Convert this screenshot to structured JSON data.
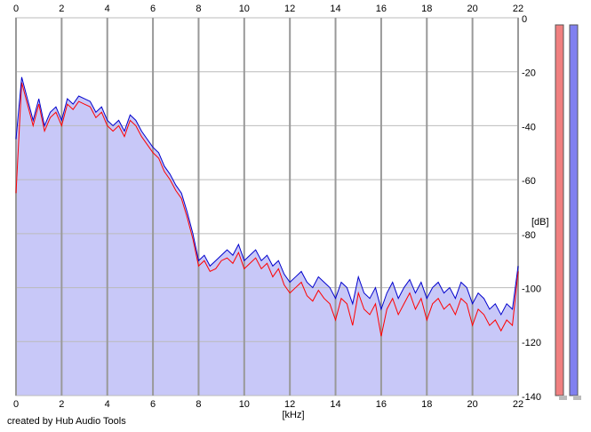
{
  "chart_data": {
    "type": "line",
    "x_label": "[kHz]",
    "y_label": "[dB]",
    "credit": "created by Hub Audio Tools",
    "x": [
      0,
      0.25,
      0.5,
      0.75,
      1,
      1.25,
      1.5,
      1.75,
      2,
      2.25,
      2.5,
      2.75,
      3,
      3.25,
      3.5,
      3.75,
      4,
      4.25,
      4.5,
      4.75,
      5,
      5.25,
      5.5,
      5.75,
      6,
      6.25,
      6.5,
      6.75,
      7,
      7.25,
      7.5,
      7.75,
      8,
      8.25,
      8.5,
      8.75,
      9,
      9.25,
      9.5,
      9.75,
      10,
      10.25,
      10.5,
      10.75,
      11,
      11.25,
      11.5,
      11.75,
      12,
      12.25,
      12.5,
      12.75,
      13,
      13.25,
      13.5,
      13.75,
      14,
      14.25,
      14.5,
      14.75,
      15,
      15.25,
      15.5,
      15.75,
      16,
      16.25,
      16.5,
      16.75,
      17,
      17.25,
      17.5,
      17.75,
      18,
      18.25,
      18.5,
      18.75,
      19,
      19.25,
      19.5,
      19.75,
      20,
      20.25,
      20.5,
      20.75,
      21,
      21.25,
      21.5,
      21.75,
      22
    ],
    "series": [
      {
        "color": "#ff0000",
        "values": [
          -65,
          -24,
          -32,
          -40,
          -32,
          -42,
          -37,
          -35,
          -40,
          -32,
          -34,
          -31,
          -32,
          -33,
          -37,
          -35,
          -40,
          -42,
          -40,
          -44,
          -38,
          -40,
          -44,
          -47,
          -50,
          -52,
          -57,
          -60,
          -64,
          -67,
          -74,
          -82,
          -92,
          -90,
          -94,
          -93,
          -90,
          -89,
          -91,
          -87,
          -93,
          -91,
          -89,
          -93,
          -91,
          -96,
          -93,
          -99,
          -102,
          -100,
          -98,
          -103,
          -105,
          -101,
          -104,
          -106,
          -112,
          -104,
          -106,
          -114,
          -102,
          -108,
          -110,
          -106,
          -118,
          -108,
          -104,
          -110,
          -106,
          -102,
          -108,
          -104,
          -112,
          -106,
          -104,
          -108,
          -106,
          -110,
          -104,
          -106,
          -114,
          -108,
          -110,
          -114,
          -112,
          -116,
          -112,
          -114,
          -94
        ]
      },
      {
        "color": "#0000cc",
        "values": [
          -45,
          -22,
          -30,
          -38,
          -30,
          -40,
          -35,
          -33,
          -38,
          -30,
          -32,
          -29,
          -30,
          -31,
          -35,
          -33,
          -38,
          -40,
          -38,
          -42,
          -36,
          -38,
          -42,
          -45,
          -48,
          -50,
          -55,
          -58,
          -62,
          -65,
          -72,
          -80,
          -90,
          -88,
          -92,
          -90,
          -88,
          -86,
          -88,
          -84,
          -90,
          -88,
          -86,
          -90,
          -88,
          -92,
          -90,
          -95,
          -98,
          -96,
          -94,
          -98,
          -100,
          -96,
          -98,
          -100,
          -104,
          -98,
          -100,
          -106,
          -96,
          -102,
          -104,
          -100,
          -108,
          -102,
          -98,
          -104,
          -100,
          -97,
          -102,
          -98,
          -104,
          -100,
          -98,
          -102,
          -100,
          -104,
          -98,
          -100,
          -106,
          -102,
          -104,
          -108,
          -106,
          -110,
          -106,
          -108,
          -92
        ]
      }
    ],
    "fill_color": "#c8c8f8",
    "xlim": [
      0,
      22
    ],
    "xticks": [
      0,
      2,
      4,
      6,
      8,
      10,
      12,
      14,
      16,
      18,
      20,
      22
    ],
    "ylim": [
      -140,
      0
    ],
    "yticks": [
      0,
      -20,
      -40,
      -60,
      -80,
      -100,
      -120,
      -140
    ],
    "grid": true
  }
}
